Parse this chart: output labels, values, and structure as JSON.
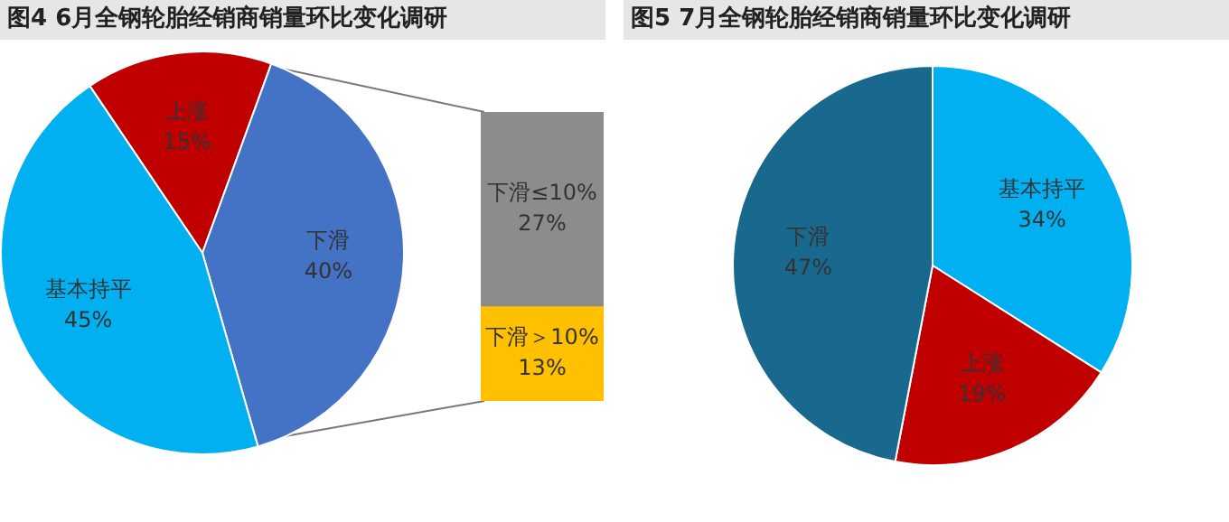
{
  "chart_data": [
    {
      "type": "pie",
      "title": "图4  6月全钢轮胎经销商销量环比变化调研",
      "categories": [
        "上涨",
        "下滑",
        "基本持平"
      ],
      "values": [
        15,
        40,
        45
      ],
      "colors": [
        "#c00000",
        "#4472c4",
        "#00b0f0"
      ],
      "value_labels": [
        "15%",
        "40%",
        "45%"
      ],
      "legend": false
    },
    {
      "type": "bar",
      "stacked": true,
      "categories": [
        null
      ],
      "series": [
        {
          "name": "下滑＞10%",
          "color": "#ffc000",
          "values": [
            13
          ],
          "value_labels": [
            "13%"
          ]
        },
        {
          "name": "下滑≤10%",
          "color": "#8c8c8c",
          "values": [
            27
          ],
          "value_labels": [
            "27%"
          ]
        }
      ],
      "legend": false
    },
    {
      "type": "pie",
      "title": "图5  7月全钢轮胎经销商销量环比变化调研",
      "categories": [
        "基本持平",
        "上涨",
        "下滑"
      ],
      "values": [
        34,
        19,
        47
      ],
      "colors": [
        "#00b0f0",
        "#c00000",
        "#19698f"
      ],
      "value_labels": [
        "34%",
        "19%",
        "47%"
      ],
      "legend": false
    }
  ]
}
